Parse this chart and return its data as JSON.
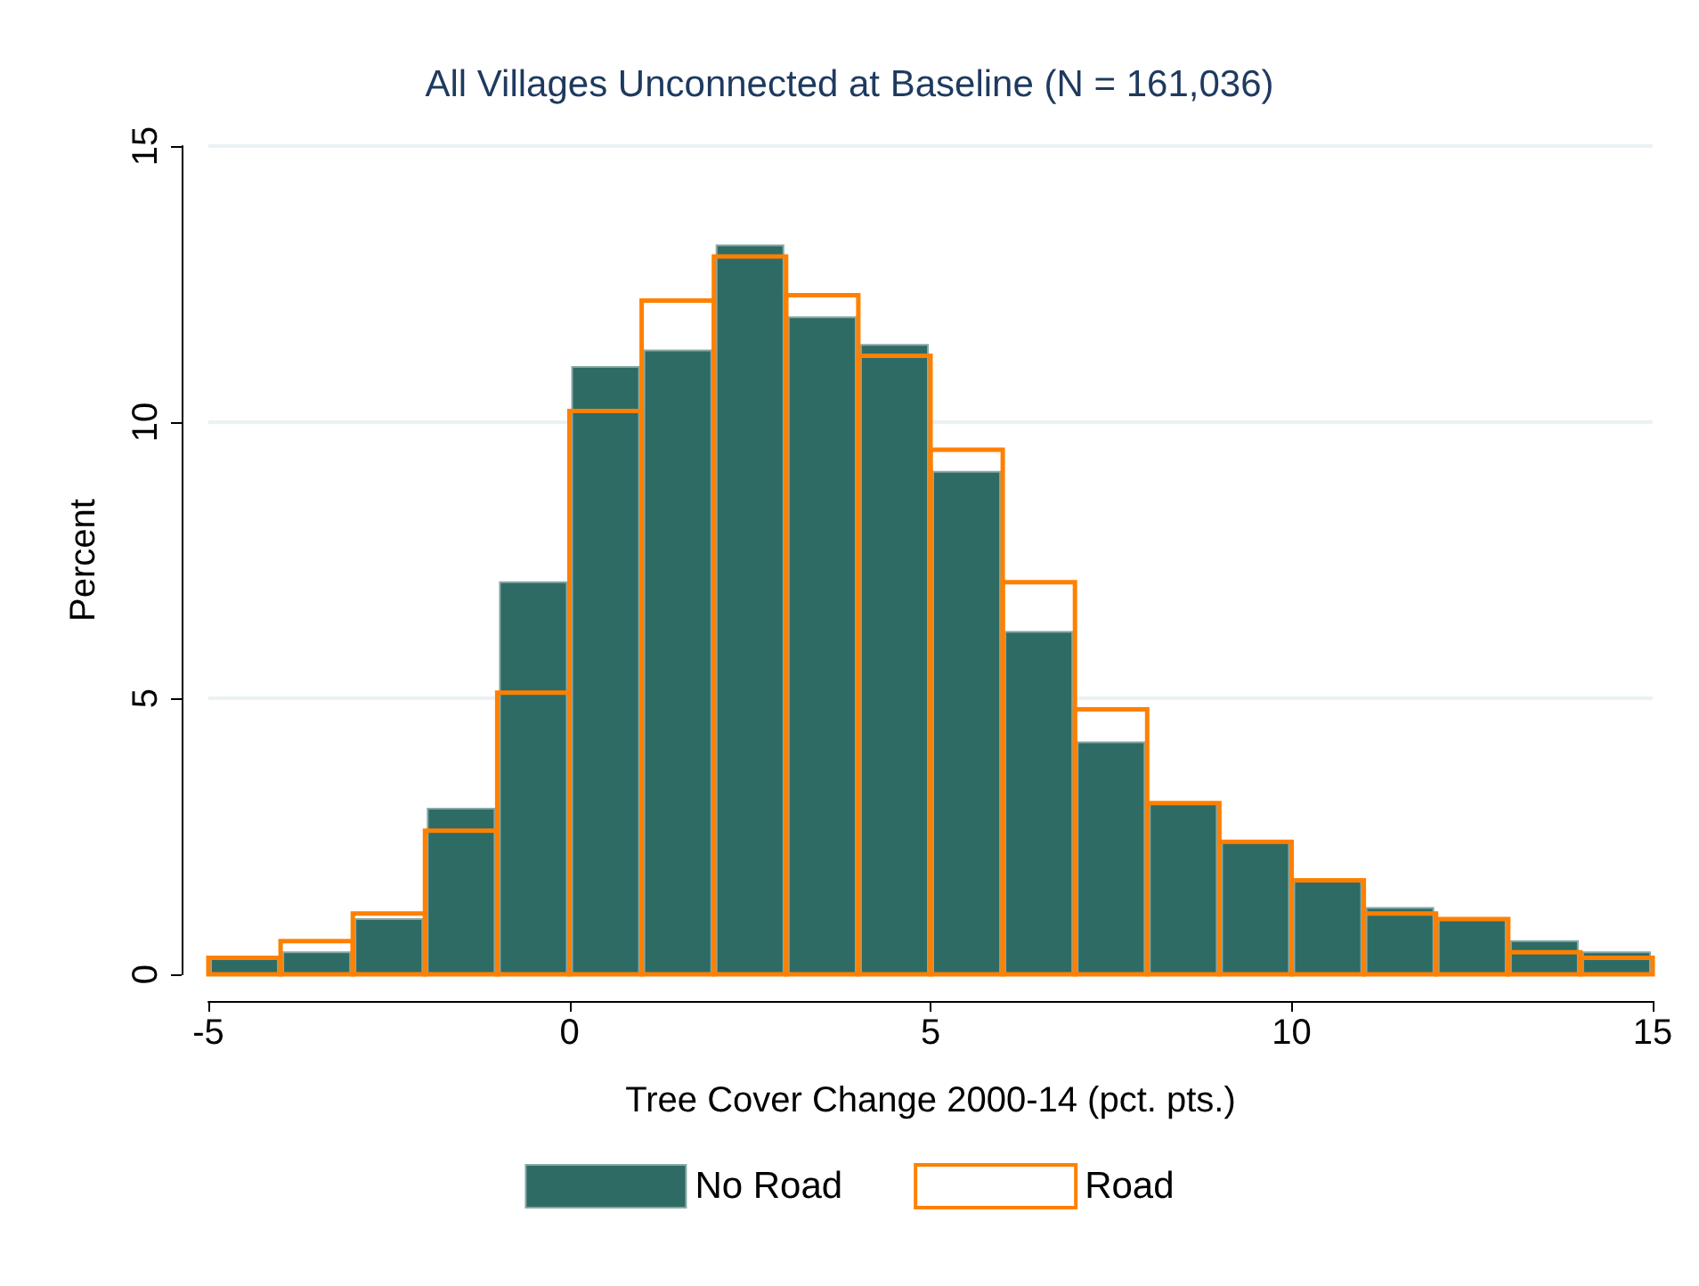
{
  "chart_data": {
    "type": "histogram",
    "title": "All Villages Unconnected at Baseline (N = 161,036)",
    "xlabel": "Tree Cover Change 2000-14 (pct. pts.)",
    "ylabel": "Percent",
    "bins": [
      -5,
      -4,
      -3,
      -2,
      -1,
      0,
      1,
      2,
      3,
      4,
      5,
      6,
      7,
      8,
      9,
      10,
      11,
      12,
      13,
      14,
      15
    ],
    "series": [
      {
        "name": "No Road",
        "color": "#2e6b64",
        "values": [
          0.3,
          0.4,
          1.0,
          3.0,
          7.1,
          11.0,
          11.3,
          13.2,
          11.9,
          11.4,
          9.1,
          6.2,
          4.2,
          3.1,
          2.4,
          1.7,
          1.2,
          1.0,
          0.6,
          0.4
        ]
      },
      {
        "name": "Road",
        "color": "#ff8000",
        "values": [
          0.3,
          0.6,
          1.1,
          2.6,
          5.1,
          10.2,
          12.2,
          13.0,
          12.3,
          11.2,
          9.5,
          7.1,
          4.8,
          3.1,
          2.4,
          1.7,
          1.1,
          1.0,
          0.4,
          0.3
        ]
      }
    ],
    "xlim": [
      -5,
      15
    ],
    "xticks": [
      -5,
      0,
      5,
      10,
      15
    ],
    "ylim": [
      0,
      15
    ],
    "yticks": [
      0,
      5,
      10,
      15
    ],
    "grid": "y",
    "legend": "bottom"
  }
}
